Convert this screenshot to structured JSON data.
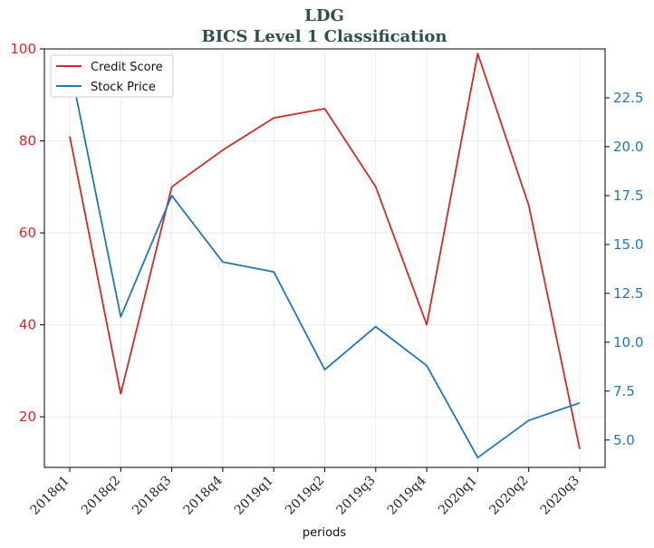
{
  "chart_data": {
    "type": "line",
    "title": "LDG",
    "subtitle": "BICS Level 1 Classification",
    "xlabel": "periods",
    "categories": [
      "2018q1",
      "2018q2",
      "2018q3",
      "2018q4",
      "2019q1",
      "2019q2",
      "2019q3",
      "2019q4",
      "2020q1",
      "2020q2",
      "2020q3"
    ],
    "y_left": {
      "ylim": [
        9,
        100
      ],
      "ticks": [
        20,
        40,
        60,
        80,
        100
      ],
      "color": "#d62728"
    },
    "y_right": {
      "ylim": [
        3.6,
        25.0
      ],
      "ticks": [
        "5.0",
        "7.5",
        "10.0",
        "12.5",
        "15.0",
        "17.5",
        "20.0",
        "22.5"
      ],
      "color": "#1f77b4"
    },
    "grid": true,
    "legend_position": "top-left",
    "series": [
      {
        "name": "Credit Score",
        "axis": "left",
        "color": "#d62728",
        "values": [
          81,
          25,
          70,
          78,
          85,
          87,
          70,
          40,
          99,
          66,
          13
        ]
      },
      {
        "name": "Stock Price",
        "axis": "right",
        "color": "#1f77b4",
        "values": [
          24.2,
          11.3,
          17.5,
          14.1,
          13.6,
          8.6,
          10.8,
          8.8,
          4.1,
          6.0,
          6.9
        ]
      }
    ]
  }
}
